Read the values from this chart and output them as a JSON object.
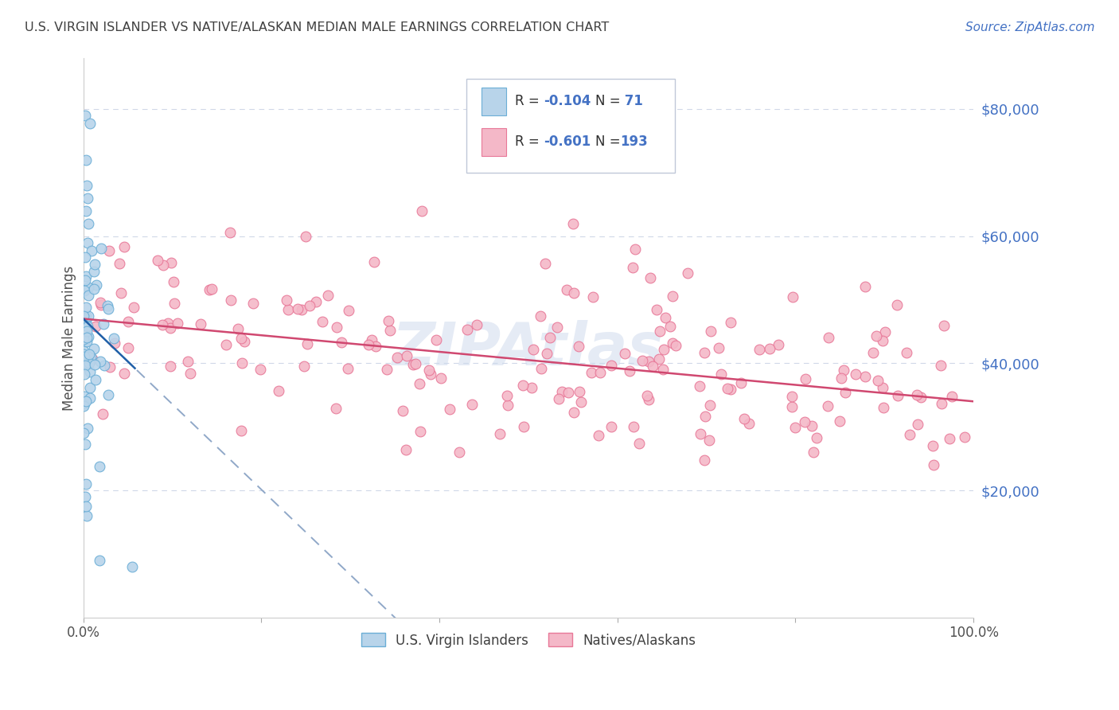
{
  "title": "U.S. VIRGIN ISLANDER VS NATIVE/ALASKAN MEDIAN MALE EARNINGS CORRELATION CHART",
  "source": "Source: ZipAtlas.com",
  "ylabel": "Median Male Earnings",
  "ytick_labels": [
    "$20,000",
    "$40,000",
    "$60,000",
    "$80,000"
  ],
  "ytick_values": [
    20000,
    40000,
    60000,
    80000
  ],
  "ymin": 0,
  "ymax": 88000,
  "xmin": 0.0,
  "xmax": 1.0,
  "legend_label1": "U.S. Virgin Islanders",
  "legend_label2": "Natives/Alaskans",
  "watermark": "ZIPAtlas",
  "scatter1_color": "#b8d4ea",
  "scatter1_edge": "#6baed6",
  "scatter2_color": "#f4b8c8",
  "scatter2_edge": "#e87898",
  "line1_color": "#2060a8",
  "line2_color": "#d04870",
  "dashed_color": "#90a8c8",
  "background_color": "#ffffff",
  "title_color": "#404040",
  "source_color": "#4472c4",
  "ytick_color": "#4472c4",
  "grid_color": "#d0d8e8",
  "seed": 42,
  "n1": 71,
  "n2": 193,
  "R1": -0.104,
  "R2": -0.601
}
